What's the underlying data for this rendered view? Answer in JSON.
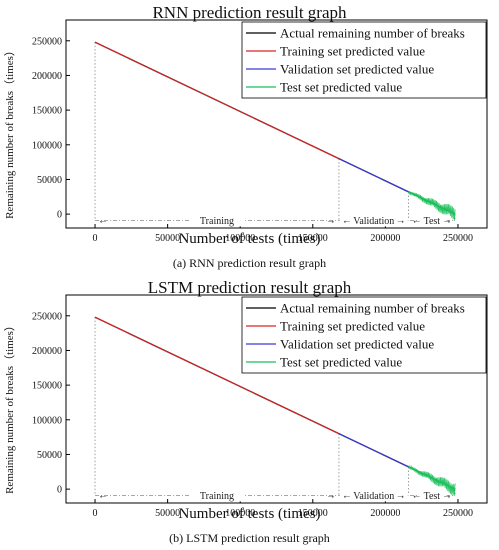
{
  "charts": [
    {
      "title": "RNN prediction result graph",
      "ylabel": "Remaining number of breaks（times）",
      "xlabel": "Number of tests (times)",
      "caption": "(a) RNN prediction result graph",
      "legend": [
        "Actual remaining number of breaks",
        "Training set predicted value",
        "Validation  set predicted value",
        "Test set predicted value"
      ],
      "x_ticks": [
        "0",
        "50000",
        "100000",
        "150000",
        "200000",
        "250000"
      ],
      "y_ticks": [
        "0",
        "50000",
        "100000",
        "150000",
        "200000",
        "250000"
      ],
      "phases": [
        "Training",
        "Validation",
        "Test"
      ]
    },
    {
      "title": "LSTM prediction result graph",
      "ylabel": "Remaining number of breaks（times）",
      "xlabel": "Number of tests (times)",
      "caption": "(b) LSTM prediction result graph",
      "legend": [
        "Actual remaining number of breaks",
        "Training set predicted value",
        "Validation  set predicted value",
        "Test set predicted value"
      ],
      "x_ticks": [
        "0",
        "50000",
        "100000",
        "150000",
        "200000",
        "250000"
      ],
      "y_ticks": [
        "0",
        "50000",
        "100000",
        "150000",
        "200000",
        "250000"
      ],
      "phases": [
        "Training",
        "Validation",
        "Test"
      ]
    }
  ],
  "colors": {
    "actual": "#000000",
    "training": "#d62728",
    "validation": "#3b3bd9",
    "test": "#1bbf5a",
    "guide": "#888888"
  },
  "chart_data": [
    {
      "type": "line",
      "title": "RNN prediction result graph",
      "xlabel": "Number of tests (times)",
      "ylabel": "Remaining number of breaks（times）",
      "xlim": [
        -20000,
        270000
      ],
      "ylim": [
        -20000,
        280000
      ],
      "series": [
        {
          "name": "Actual remaining number of breaks",
          "x": [
            0,
            248000
          ],
          "y": [
            248000,
            0
          ]
        },
        {
          "name": "Training set predicted value",
          "x": [
            0,
            168000
          ],
          "y": [
            248000,
            80000
          ]
        },
        {
          "name": "Validation  set predicted value",
          "x": [
            168000,
            216000
          ],
          "y": [
            80000,
            32000
          ]
        },
        {
          "name": "Test set predicted value",
          "x": [
            216000,
            248000
          ],
          "y": [
            32000,
            0
          ]
        }
      ],
      "phase_boundaries": [
        168000,
        216000,
        248000
      ],
      "phase_labels": [
        "Training",
        "Validation",
        "Test"
      ]
    },
    {
      "type": "line",
      "title": "LSTM prediction result graph",
      "xlabel": "Number of tests (times)",
      "ylabel": "Remaining number of breaks（times）",
      "xlim": [
        -20000,
        270000
      ],
      "ylim": [
        -20000,
        280000
      ],
      "series": [
        {
          "name": "Actual remaining number of breaks",
          "x": [
            0,
            248000
          ],
          "y": [
            248000,
            0
          ]
        },
        {
          "name": "Training set predicted value",
          "x": [
            0,
            168000
          ],
          "y": [
            248000,
            80000
          ]
        },
        {
          "name": "Validation  set predicted value",
          "x": [
            168000,
            216000
          ],
          "y": [
            80000,
            32000
          ]
        },
        {
          "name": "Test set predicted value",
          "x": [
            216000,
            248000
          ],
          "y": [
            32000,
            0
          ]
        }
      ],
      "phase_boundaries": [
        168000,
        216000,
        248000
      ],
      "phase_labels": [
        "Training",
        "Validation",
        "Test"
      ]
    }
  ]
}
